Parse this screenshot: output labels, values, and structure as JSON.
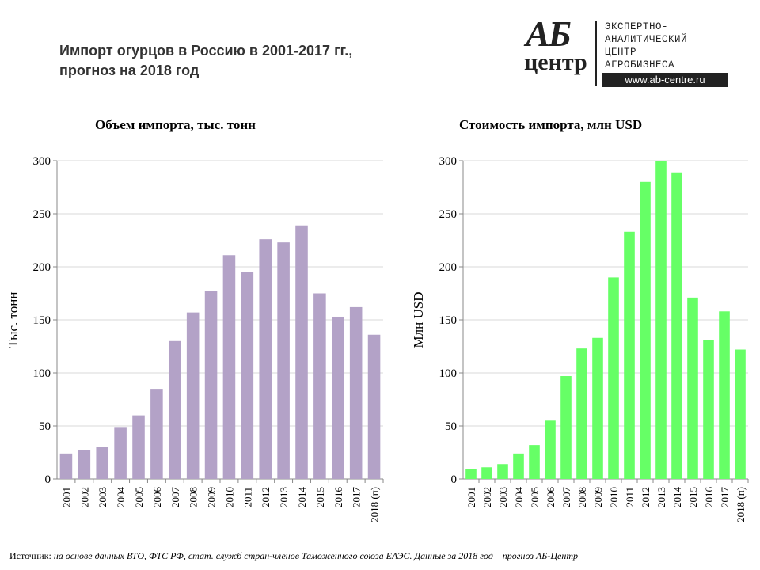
{
  "header": {
    "title_line1": "Импорт огурцов в Россию в 2001-2017 гг.,",
    "title_line2": "прогноз на 2018 год"
  },
  "logo": {
    "mark_top": "АБ",
    "mark_bottom": "центр",
    "line1": "ЭКСПЕРТНО-",
    "line2": "АНАЛИТИЧЕСКИЙ",
    "line3": "ЦЕНТР",
    "line4": "АГРОБИЗНЕСА",
    "url": "www.ab-centre.ru"
  },
  "footer": {
    "source_label": "Источник:",
    "source_text": "на основе данных ВТО, ФТС РФ, стат. служб стран-членов Таможенного союза ЕАЭС. Данные за 2018 год – прогноз АБ-Центр"
  },
  "chart_data": [
    {
      "type": "bar",
      "title": "Объем импорта, тыс. тонн",
      "ylabel": "Тыс. тонн",
      "xlabel": "",
      "categories": [
        "2001",
        "2002",
        "2003",
        "2004",
        "2005",
        "2006",
        "2007",
        "2008",
        "2009",
        "2010",
        "2011",
        "2012",
        "2013",
        "2014",
        "2015",
        "2016",
        "2017",
        "2018 (п)"
      ],
      "values": [
        24,
        27,
        30,
        49,
        60,
        85,
        130,
        157,
        177,
        211,
        195,
        226,
        223,
        239,
        175,
        153,
        162,
        136
      ],
      "ylim": [
        0,
        300
      ],
      "yticks": [
        0,
        50,
        100,
        150,
        200,
        250,
        300
      ],
      "color": "#b3a2c7",
      "grid": true
    },
    {
      "type": "bar",
      "title": "Стоимость импорта, млн USD",
      "ylabel": "Млн USD",
      "xlabel": "",
      "categories": [
        "2001",
        "2002",
        "2003",
        "2004",
        "2005",
        "2006",
        "2007",
        "2008",
        "2009",
        "2010",
        "2011",
        "2012",
        "2013",
        "2014",
        "2015",
        "2016",
        "2017",
        "2018 (п)"
      ],
      "values": [
        9,
        11,
        14,
        24,
        32,
        55,
        97,
        123,
        133,
        190,
        233,
        280,
        300,
        289,
        171,
        131,
        158,
        122
      ],
      "ylim": [
        0,
        300
      ],
      "yticks": [
        0,
        50,
        100,
        150,
        200,
        250,
        300
      ],
      "color": "#66ff66",
      "grid": true
    }
  ]
}
